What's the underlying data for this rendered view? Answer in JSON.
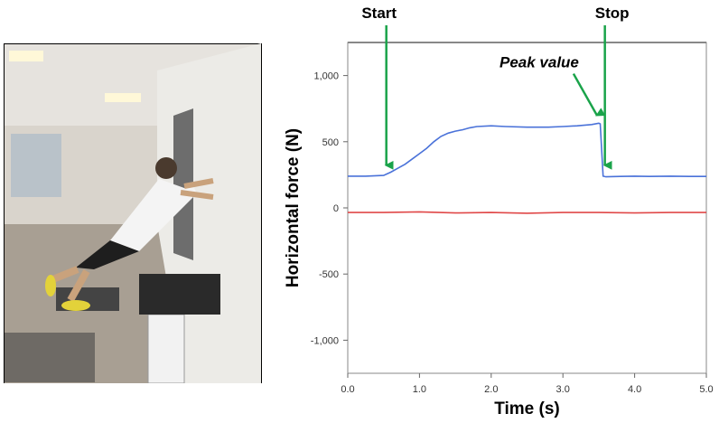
{
  "photo": {
    "description_icon": "wall-push-exercise-photo"
  },
  "chart_data": {
    "type": "line",
    "xlabel": "Time (s)",
    "ylabel": "Horizontal force (N)",
    "xlim": [
      0,
      5
    ],
    "ylim": [
      -1250,
      1250
    ],
    "x_ticks": [
      0,
      1,
      2,
      3,
      4,
      5
    ],
    "x_tick_labels": [
      "0.0",
      "1.0",
      "2.0",
      "3.0",
      "4.0",
      "5.0"
    ],
    "y_ticks": [
      1000,
      500,
      0,
      -500,
      -1000
    ],
    "y_tick_labels": [
      "1,000",
      "500",
      "0",
      "-500",
      "-1,000"
    ],
    "grid": false,
    "series": [
      {
        "color": "#4a72d9",
        "x": [
          0,
          0.25,
          0.5,
          0.6,
          0.7,
          0.8,
          0.9,
          1.0,
          1.1,
          1.2,
          1.3,
          1.4,
          1.5,
          1.6,
          1.7,
          1.8,
          2.0,
          2.2,
          2.5,
          2.8,
          3.0,
          3.2,
          3.4,
          3.5,
          3.52,
          3.56,
          3.6,
          3.8,
          4.0,
          4.2,
          4.5,
          4.8,
          5.0
        ],
        "y": [
          240,
          240,
          245,
          270,
          300,
          330,
          370,
          410,
          450,
          500,
          540,
          565,
          580,
          590,
          605,
          615,
          620,
          615,
          610,
          610,
          615,
          620,
          630,
          640,
          635,
          240,
          235,
          238,
          240,
          238,
          240,
          238,
          238
        ]
      },
      {
        "color": "#e04848",
        "x": [
          0,
          0.5,
          1.0,
          1.5,
          2.0,
          2.5,
          3.0,
          3.5,
          4.0,
          4.5,
          5.0
        ],
        "y": [
          -35,
          -35,
          -30,
          -38,
          -35,
          -40,
          -35,
          -35,
          -38,
          -35,
          -35
        ]
      }
    ],
    "annotations": [
      {
        "label": "Start",
        "x": 0.5,
        "y": 240
      },
      {
        "label": "Stop",
        "x": 3.56,
        "y": 240
      },
      {
        "label": "Peak value",
        "x": 3.5,
        "y": 645
      }
    ],
    "arrow_color": "#1aa34a"
  }
}
